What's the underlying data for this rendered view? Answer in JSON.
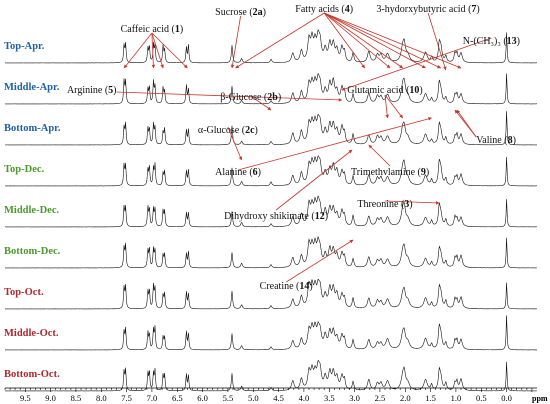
{
  "chart_data": {
    "type": "line",
    "title": "",
    "xlabel": "ppm",
    "ylabel": "",
    "x_reversed": true,
    "xlim": [
      9.9,
      -0.6
    ],
    "x_ticks": [
      9.5,
      9.0,
      8.5,
      8.0,
      7.5,
      7.0,
      6.5,
      6.0,
      5.5,
      5.0,
      4.5,
      4.0,
      3.5,
      3.0,
      2.5,
      2.0,
      1.5,
      1.0,
      0.5,
      0.0
    ],
    "x_tick_labels": [
      "9.5",
      "9.0",
      "8.5",
      "8.0",
      "7.5",
      "7.0",
      "6.5",
      "6.0",
      "5.5",
      "5.0",
      "4.5",
      "4.0",
      "3.5",
      "3.0",
      "2.5",
      "2.0",
      "1.5",
      "1.0",
      "0.5",
      "0.0"
    ],
    "series": [
      {
        "name": "Top-Apr.",
        "color": "#1f5fa8"
      },
      {
        "name": "Middle-Apr.",
        "color": "#1f5fa8"
      },
      {
        "name": "Bottom-Apr.",
        "color": "#1f5fa8"
      },
      {
        "name": "Top-Dec.",
        "color": "#4a9a2e"
      },
      {
        "name": "Middle-Dec.",
        "color": "#4a9a2e"
      },
      {
        "name": "Bottom-Dec.",
        "color": "#4a9a2e"
      },
      {
        "name": "Top-Oct.",
        "color": "#b0282c"
      },
      {
        "name": "Middle-Oct.",
        "color": "#b0282c"
      },
      {
        "name": "Bottom-Oct.",
        "color": "#b0282c"
      }
    ],
    "peaks": [
      {
        "ppm": 7.55,
        "height": 0.62,
        "width": 0.012
      },
      {
        "ppm": 7.52,
        "height": 0.62,
        "width": 0.012
      },
      {
        "ppm": 7.08,
        "height": 0.52,
        "width": 0.012
      },
      {
        "ppm": 7.05,
        "height": 0.5,
        "width": 0.012
      },
      {
        "ppm": 6.97,
        "height": 0.6,
        "width": 0.012
      },
      {
        "ppm": 6.94,
        "height": 0.58,
        "width": 0.012
      },
      {
        "ppm": 6.78,
        "height": 0.45,
        "width": 0.012
      },
      {
        "ppm": 6.75,
        "height": 0.43,
        "width": 0.012
      },
      {
        "ppm": 6.32,
        "height": 0.5,
        "width": 0.012
      },
      {
        "ppm": 6.28,
        "height": 0.48,
        "width": 0.012
      },
      {
        "ppm": 5.42,
        "height": 0.5,
        "width": 0.015
      },
      {
        "ppm": 5.23,
        "height": 0.12,
        "width": 0.02
      },
      {
        "ppm": 4.65,
        "height": 0.1,
        "width": 0.02
      },
      {
        "ppm": 4.22,
        "height": 0.3,
        "width": 0.03
      },
      {
        "ppm": 4.05,
        "height": 0.35,
        "width": 0.03
      },
      {
        "ppm": 3.9,
        "height": 0.62,
        "width": 0.03
      },
      {
        "ppm": 3.84,
        "height": 0.55,
        "width": 0.03
      },
      {
        "ppm": 3.78,
        "height": 0.5,
        "width": 0.03
      },
      {
        "ppm": 3.72,
        "height": 0.58,
        "width": 0.03
      },
      {
        "ppm": 3.68,
        "height": 0.45,
        "width": 0.03
      },
      {
        "ppm": 3.58,
        "height": 0.4,
        "width": 0.03
      },
      {
        "ppm": 3.49,
        "height": 0.5,
        "width": 0.03
      },
      {
        "ppm": 3.42,
        "height": 0.55,
        "width": 0.03
      },
      {
        "ppm": 3.35,
        "height": 0.35,
        "width": 0.03
      },
      {
        "ppm": 3.25,
        "height": 0.45,
        "width": 0.03
      },
      {
        "ppm": 3.2,
        "height": 0.3,
        "width": 0.02
      },
      {
        "ppm": 3.03,
        "height": 0.3,
        "width": 0.02
      },
      {
        "ppm": 2.72,
        "height": 0.3,
        "width": 0.03
      },
      {
        "ppm": 2.55,
        "height": 0.22,
        "width": 0.03
      },
      {
        "ppm": 2.48,
        "height": 0.2,
        "width": 0.03
      },
      {
        "ppm": 2.35,
        "height": 0.28,
        "width": 0.04
      },
      {
        "ppm": 2.05,
        "height": 0.4,
        "width": 0.04
      },
      {
        "ppm": 2.02,
        "height": 0.38,
        "width": 0.03
      },
      {
        "ppm": 1.95,
        "height": 0.2,
        "width": 0.04
      },
      {
        "ppm": 1.6,
        "height": 0.3,
        "width": 0.04
      },
      {
        "ppm": 1.48,
        "height": 0.15,
        "width": 0.02
      },
      {
        "ppm": 1.33,
        "height": 0.48,
        "width": 0.02
      },
      {
        "ppm": 1.3,
        "height": 0.42,
        "width": 0.03
      },
      {
        "ppm": 1.2,
        "height": 0.2,
        "width": 0.02
      },
      {
        "ppm": 1.02,
        "height": 0.25,
        "width": 0.02
      },
      {
        "ppm": 0.98,
        "height": 0.25,
        "width": 0.02
      },
      {
        "ppm": 0.9,
        "height": 0.32,
        "width": 0.03
      },
      {
        "ppm": 0.0,
        "height": 0.95,
        "width": 0.01
      }
    ],
    "annotations": [
      {
        "text": "Caffeic acid (",
        "bold": "1",
        "tail": ")",
        "label_ppm": 7.0,
        "targets_ppm": [
          7.55,
          6.97,
          6.78,
          6.3
        ]
      },
      {
        "text": "Sucrose (",
        "bold": "2a",
        "tail": ")",
        "label_ppm": 5.25,
        "targets_ppm": [
          5.42
        ]
      },
      {
        "text": "Fatty acids (",
        "bold": "4",
        "tail": ")",
        "label_ppm": 3.6,
        "targets_ppm": [
          5.35,
          2.8,
          2.3,
          2.05,
          1.6,
          1.3,
          0.9
        ]
      },
      {
        "text": "3-hydorxybutyric acid (",
        "bold": "7",
        "tail": ")",
        "label_ppm": 1.55,
        "targets_ppm": [
          1.2
        ]
      },
      {
        "text": "N-(CH₃)₃ (",
        "bold": "13",
        "tail": ")",
        "label_ppm": 0.3,
        "targets_ppm": [
          3.25
        ]
      },
      {
        "text": "Arginine (",
        "bold": "5",
        "tail": ")",
        "label_ppm": 7.7,
        "targets_ppm": [
          3.25
        ]
      },
      {
        "text": "β-Glucose (",
        "bold": "2b",
        "tail": ")",
        "label_ppm": 5.05,
        "targets_ppm": [
          4.65
        ]
      },
      {
        "text": "Glutamic acid (",
        "bold": "10",
        "tail": ")",
        "label_ppm": 2.4,
        "targets_ppm": [
          2.35,
          2.05
        ]
      },
      {
        "text": "α-Glucose (",
        "bold": "2c",
        "tail": ")",
        "label_ppm": 5.5,
        "targets_ppm": [
          5.23
        ]
      },
      {
        "text": "Valine (",
        "bold": "8",
        "tail": ")",
        "label_ppm": 0.6,
        "targets_ppm": [
          1.02,
          0.98
        ]
      },
      {
        "text": "Alanine (",
        "bold": "6",
        "tail": ")",
        "label_ppm": 5.3,
        "targets_ppm": [
          1.48
        ]
      },
      {
        "text": "Trimethvlamine (",
        "bold": "9",
        "tail": ")",
        "label_ppm": 2.3,
        "targets_ppm": [
          2.72
        ]
      },
      {
        "text": "Threonine (",
        "bold": "3",
        "tail": ")",
        "label_ppm": 2.4,
        "targets_ppm": [
          1.33
        ]
      },
      {
        "text": "Dihydroxy shikimate (",
        "bold": "12",
        "tail": ")",
        "label_ppm": 4.55,
        "targets_ppm": [
          3.05
        ]
      },
      {
        "text": "Creatine (",
        "bold": "14",
        "tail": ")",
        "label_ppm": 4.35,
        "targets_ppm": [
          3.03
        ]
      }
    ]
  }
}
